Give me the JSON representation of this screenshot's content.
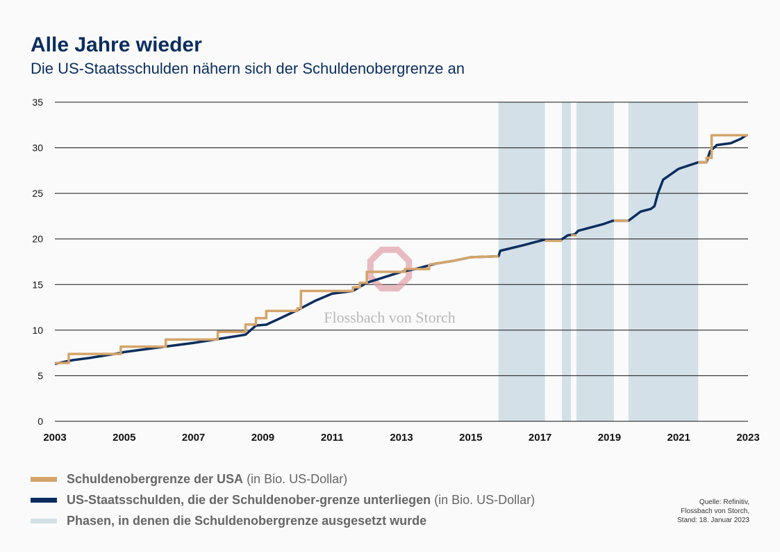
{
  "title": "Alle Jahre wieder",
  "subtitle": "Die US-Staatsschulden nähern sich der Schuldenobergrenze an",
  "watermark": "Flossbach von Storch",
  "source": [
    "Quelle: Refinitiv,",
    "Flossbach von Storch,",
    "Stand: 18. Januar 2023"
  ],
  "legend": [
    {
      "label": "Schuldenobergrenze der USA",
      "unit": "(in Bio. US-Dollar)",
      "color": "#d4a46a"
    },
    {
      "label": "US-Staatsschulden, die der Schuldenober-grenze unterliegen",
      "unit": "(in Bio. US-Dollar)",
      "color": "#0b2d5e"
    },
    {
      "label": "Phasen, in denen die Schuldenobergrenze ausgesetzt wurde",
      "unit": "",
      "color": "#d3e0e8"
    }
  ],
  "chart_data": {
    "type": "line",
    "xlim": [
      2003,
      2023
    ],
    "ylim": [
      0,
      35
    ],
    "x_ticks": [
      "2003",
      "2005",
      "2007",
      "2009",
      "2011",
      "2013",
      "2015",
      "2017",
      "2019",
      "2021",
      "2023"
    ],
    "y_ticks": [
      "0",
      "5",
      "10",
      "15",
      "20",
      "25",
      "30",
      "35"
    ],
    "grid": "horizontal",
    "suspension_phases": [
      [
        2015.8,
        2017.14
      ],
      [
        2017.63,
        2017.89
      ],
      [
        2018.05,
        2019.13
      ],
      [
        2019.55,
        2021.56
      ]
    ],
    "series": [
      {
        "name": "US-Staatsschulden, die der Schuldenober-grenze unterliegen",
        "color": "#0b2d5e",
        "x": [
          2003,
          2003.5,
          2004,
          2004.9,
          2005,
          2006,
          2007,
          2008,
          2008.5,
          2008.8,
          2009.1,
          2009.5,
          2010,
          2010.5,
          2011,
          2011.6,
          2012,
          2012.5,
          2013,
          2013.4,
          2014,
          2014.5,
          2015,
          2015.8,
          2015.85,
          2016.5,
          2017.1,
          2017.6,
          2017.8,
          2018,
          2018.1,
          2018.8,
          2019.1,
          2019.55,
          2019.9,
          2020.2,
          2020.3,
          2020.4,
          2020.55,
          2021,
          2021.56,
          2021.8,
          2021.9,
          2022.1,
          2022.5,
          2022.8,
          2022.95
        ],
        "y": [
          6.3,
          6.7,
          6.95,
          7.5,
          7.6,
          8.1,
          8.6,
          9.2,
          9.5,
          10.5,
          10.6,
          11.3,
          12.2,
          13.2,
          14.0,
          14.3,
          15.2,
          15.8,
          16.4,
          16.7,
          17.3,
          17.6,
          18.0,
          18.1,
          18.7,
          19.3,
          19.9,
          19.9,
          20.4,
          20.5,
          20.9,
          21.6,
          22.0,
          22.0,
          23.0,
          23.3,
          23.6,
          25.0,
          26.5,
          27.7,
          28.4,
          28.4,
          29.6,
          30.3,
          30.5,
          31.0,
          31.4
        ]
      },
      {
        "name": "Schuldenobergrenze der USA",
        "color": "#d4a46a",
        "step": true,
        "segments": [
          {
            "x": [
              2003,
              2003.4,
              2004.9,
              2006.2,
              2007.7,
              2008.5,
              2008.8,
              2009.1,
              2010.0,
              2010.1,
              2011.6,
              2011.8,
              2012.0,
              2013.1,
              2013.4,
              2013.8
            ],
            "y": [
              6.4,
              7.384,
              8.184,
              8.965,
              9.815,
              10.615,
              11.315,
              12.104,
              12.394,
              14.294,
              14.694,
              15.194,
              16.394,
              16.699,
              16.699,
              17.2
            ]
          },
          {
            "x": [
              2013.8,
              2014,
              2014.5,
              2015,
              2015.8
            ],
            "y": [
              17.2,
              17.3,
              17.6,
              18.0,
              18.1
            ],
            "smooth": true
          },
          {
            "x": [
              2017.14,
              2017.63
            ],
            "y": [
              19.8,
              19.8
            ]
          },
          {
            "x": [
              2017.89,
              2018.05
            ],
            "y": [
              20.4,
              20.4
            ]
          },
          {
            "x": [
              2019.13,
              2019.55
            ],
            "y": [
              22.0,
              22.0
            ]
          },
          {
            "x": [
              2021.56,
              2021.8,
              2021.95,
              2023
            ],
            "y": [
              28.4,
              28.9,
              31.381,
              31.381
            ]
          }
        ]
      }
    ]
  }
}
